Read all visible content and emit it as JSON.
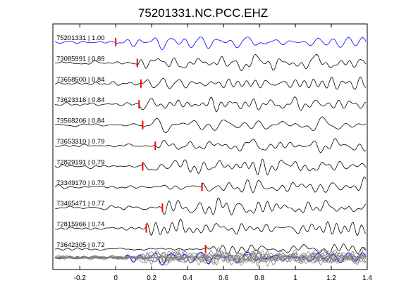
{
  "chart_data": {
    "type": "line",
    "title": "75201331.NC.PCC.EHZ",
    "xlabel": "",
    "ylabel": "",
    "xlim": [
      -0.35,
      1.4
    ],
    "xticks": [
      -0.2,
      0,
      0.2,
      0.4,
      0.6,
      0.8,
      1,
      1.2,
      1.4
    ],
    "xtick_labels": [
      "-0.2",
      "0",
      "0.2",
      "0.4",
      "0.6",
      "0.8",
      "1",
      "1.2",
      "1.4"
    ],
    "grid": false,
    "legend": "none",
    "colors": {
      "reference": "#0000ff",
      "traces": "#000000",
      "pick": "#ff0000",
      "stack": "#808080"
    },
    "series": [
      {
        "label": "75201331 | 1.00",
        "pick_time": 0.0,
        "color": "#0000ff"
      },
      {
        "label": "73085991 | 0.89",
        "pick_time": 0.12,
        "color": "#000000"
      },
      {
        "label": "73658500 | 0.84",
        "pick_time": 0.14,
        "color": "#000000"
      },
      {
        "label": "73623316 | 0.84",
        "pick_time": 0.13,
        "color": "#000000"
      },
      {
        "label": "73568206 | 0.84",
        "pick_time": 0.15,
        "color": "#000000"
      },
      {
        "label": "73653310 | 0.79",
        "pick_time": 0.22,
        "color": "#000000"
      },
      {
        "label": "72829191 | 0.79",
        "pick_time": 0.15,
        "color": "#000000"
      },
      {
        "label": "73349170 | 0.79",
        "pick_time": 0.48,
        "color": "#000000"
      },
      {
        "label": "73465471 | 0.77",
        "pick_time": 0.26,
        "color": "#000000"
      },
      {
        "label": "72815966 | 0.74",
        "pick_time": 0.17,
        "color": "#000000"
      },
      {
        "label": "73642305 | 0.72",
        "pick_time": 0.5,
        "color": "#000000"
      }
    ]
  }
}
